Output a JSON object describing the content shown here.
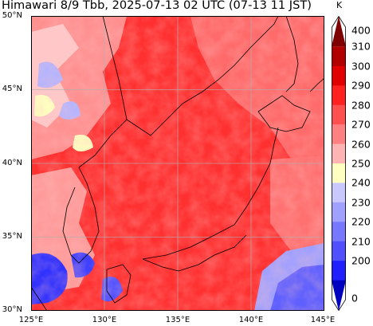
{
  "title": "Himawari 8/9 Tbb, 2025-07-13 02 UTC (07-13 11 JST)",
  "map": {
    "lat_labels": [
      "50°N",
      "45°N",
      "40°N",
      "35°N",
      "30°N"
    ],
    "lon_labels": [
      "125°E",
      "130°E",
      "135°E",
      "140°E",
      "145°E"
    ],
    "extent": {
      "lon": [
        125,
        145
      ],
      "lat": [
        30,
        50
      ]
    },
    "gridlines": true
  },
  "colorbar": {
    "unit": "K",
    "ticks": [
      "400",
      "310",
      "300",
      "290",
      "280",
      "270",
      "260",
      "250",
      "240",
      "230",
      "220",
      "210",
      "200",
      "0"
    ],
    "colors": [
      "#7f0000",
      "#b20000",
      "#e00000",
      "#ff2020",
      "#ff5050",
      "#ff8080",
      "#ffb4b4",
      "#ffffc0",
      "#c8c8ff",
      "#a0a0ff",
      "#7878ff",
      "#5050ff",
      "#2020ff",
      "#0000c0"
    ]
  },
  "legend_colors": {
    "dominant": "#ff3030",
    "coastline": "#000000"
  }
}
